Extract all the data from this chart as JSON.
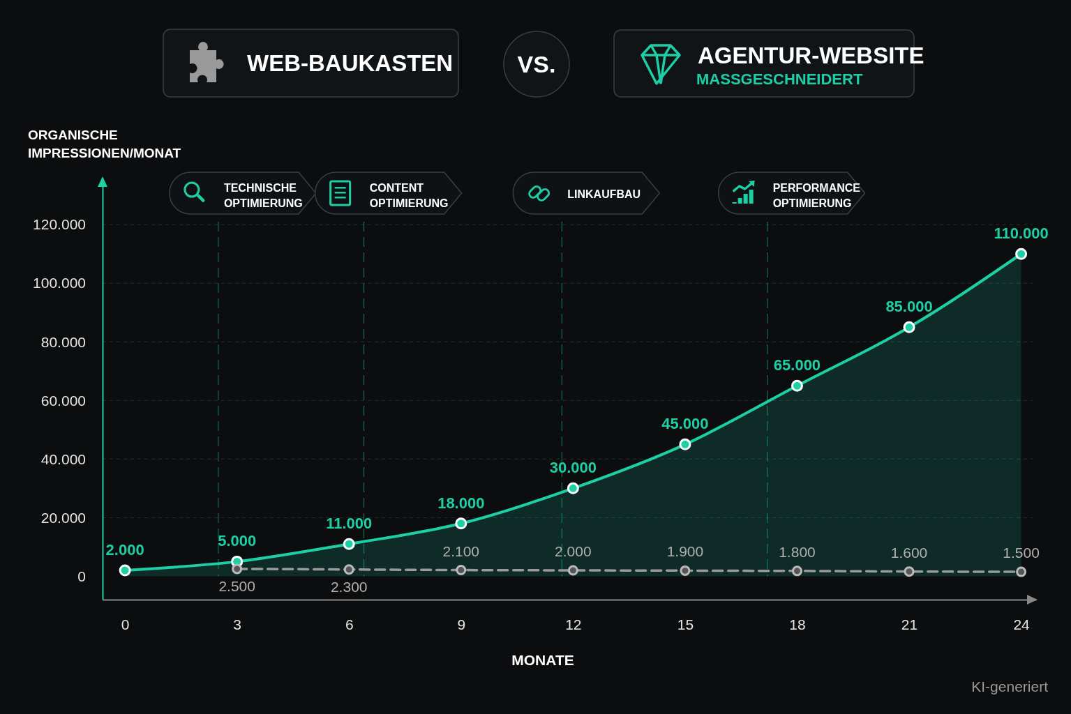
{
  "chart_data": {
    "type": "line",
    "xlabel": "MONATE",
    "ylabel": "ORGANISCHE IMPRESSIONEN/MONAT",
    "x": [
      0,
      3,
      6,
      9,
      12,
      15,
      18,
      21,
      24
    ],
    "xlim": [
      -0.6,
      24.4
    ],
    "xticks": [
      0,
      3,
      6,
      9,
      12,
      15,
      18,
      21,
      24
    ],
    "ylim": [
      -8000,
      136000
    ],
    "yticks": [
      0,
      {
        "value": 20000,
        "label": "20.000"
      },
      {
        "value": 40000,
        "label": "40.000"
      },
      {
        "value": 60000,
        "label": "60.000"
      },
      {
        "value": 80000,
        "label": "80.000"
      },
      {
        "value": 100000,
        "label": "100.000"
      },
      {
        "value": 120000,
        "label": "120.000"
      }
    ],
    "grid": "y",
    "legend": "top",
    "marker": "circle",
    "series": [
      {
        "name": "WEB-BAUKASTEN",
        "color": "#9a9a9a",
        "type": "line",
        "line_style": "dashed",
        "values": [
          null,
          2500,
          2300,
          2100,
          2000,
          1900,
          1800,
          1600,
          1500
        ],
        "value_labels": [
          null,
          "2.500",
          "2.300",
          "2.100",
          "2.000",
          "1.900",
          "1.800",
          "1.600",
          "1.500"
        ]
      },
      {
        "name": "AGENTUR-WEBSITE",
        "color": "#1ecfa5",
        "type": "area",
        "line_style": "solid",
        "values": [
          2000,
          5000,
          11000,
          18000,
          30000,
          45000,
          65000,
          85000,
          110000
        ],
        "value_labels": [
          "2.000",
          "5.000",
          "11.000",
          "18.000",
          "30.000",
          "45.000",
          "65.000",
          "85.000",
          "110.000"
        ]
      }
    ],
    "ref_lines": [
      {
        "axis": "x",
        "value": 2.5,
        "label": "TECHNISCHE OPTIMIERUNG",
        "color": "#1ecfa5",
        "line_style": "dashed"
      },
      {
        "axis": "x",
        "value": 6.4,
        "label": "CONTENT OPTIMIERUNG",
        "color": "#1ecfa5",
        "line_style": "dashed"
      },
      {
        "axis": "x",
        "value": 11.7,
        "label": "LINKAUFBAU",
        "color": "#1ecfa5",
        "line_style": "dashed"
      },
      {
        "axis": "x",
        "value": 17.2,
        "label": "PERFORMANCE OPTIMIERUNG",
        "color": "#1ecfa5",
        "line_style": "dashed"
      }
    ],
    "annotations": [
      "VS.",
      "MASSGESCHNEIDERT",
      "KI-generiert"
    ]
  }
}
